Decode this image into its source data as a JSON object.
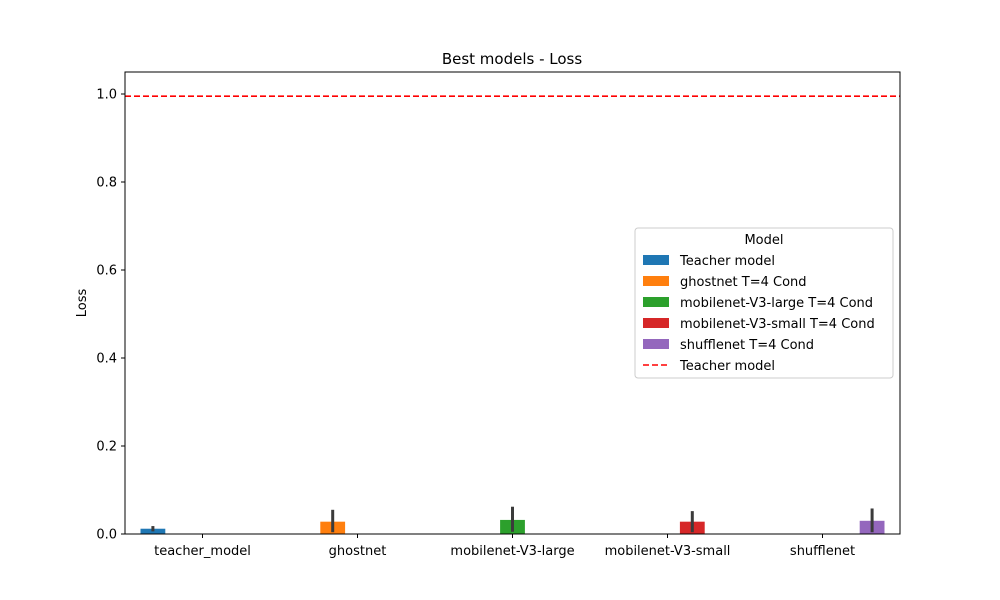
{
  "chart_data": {
    "type": "bar",
    "title": "Best models - Loss",
    "xlabel": "",
    "ylabel": "Loss",
    "ylim": [
      0,
      1.05
    ],
    "yticks": [
      "0.0",
      "0.2",
      "0.4",
      "0.6",
      "0.8",
      "1.0"
    ],
    "categories": [
      "teacher_model",
      "ghostnet",
      "mobilenet-V3-large",
      "mobilenet-V3-small",
      "shufflenet"
    ],
    "grid": false,
    "legend_title": "Model",
    "legend_placement": "center-right",
    "series": [
      {
        "name": "Teacher model",
        "color": "#1f77b4",
        "category_index": 0,
        "value": 0.012,
        "error_low": 0.006,
        "error_high": 0.018
      },
      {
        "name": "ghostnet T=4 Cond",
        "color": "#ff7f0e",
        "category_index": 1,
        "value": 0.028,
        "error_low": 0.004,
        "error_high": 0.055
      },
      {
        "name": "mobilenet-V3-large T=4 Cond",
        "color": "#2ca02c",
        "category_index": 2,
        "value": 0.032,
        "error_low": 0.005,
        "error_high": 0.062
      },
      {
        "name": "mobilenet-V3-small T=4 Cond",
        "color": "#d62728",
        "category_index": 3,
        "value": 0.028,
        "error_low": 0.004,
        "error_high": 0.052
      },
      {
        "name": "shufflenet T=4 Cond",
        "color": "#9467bd",
        "category_index": 4,
        "value": 0.03,
        "error_low": 0.004,
        "error_high": 0.058
      }
    ],
    "reference_line": {
      "name": "Teacher model",
      "value": 0.995,
      "color": "#ff0000",
      "style": "dashed"
    },
    "error_bar_color": "#3b3b3b"
  }
}
